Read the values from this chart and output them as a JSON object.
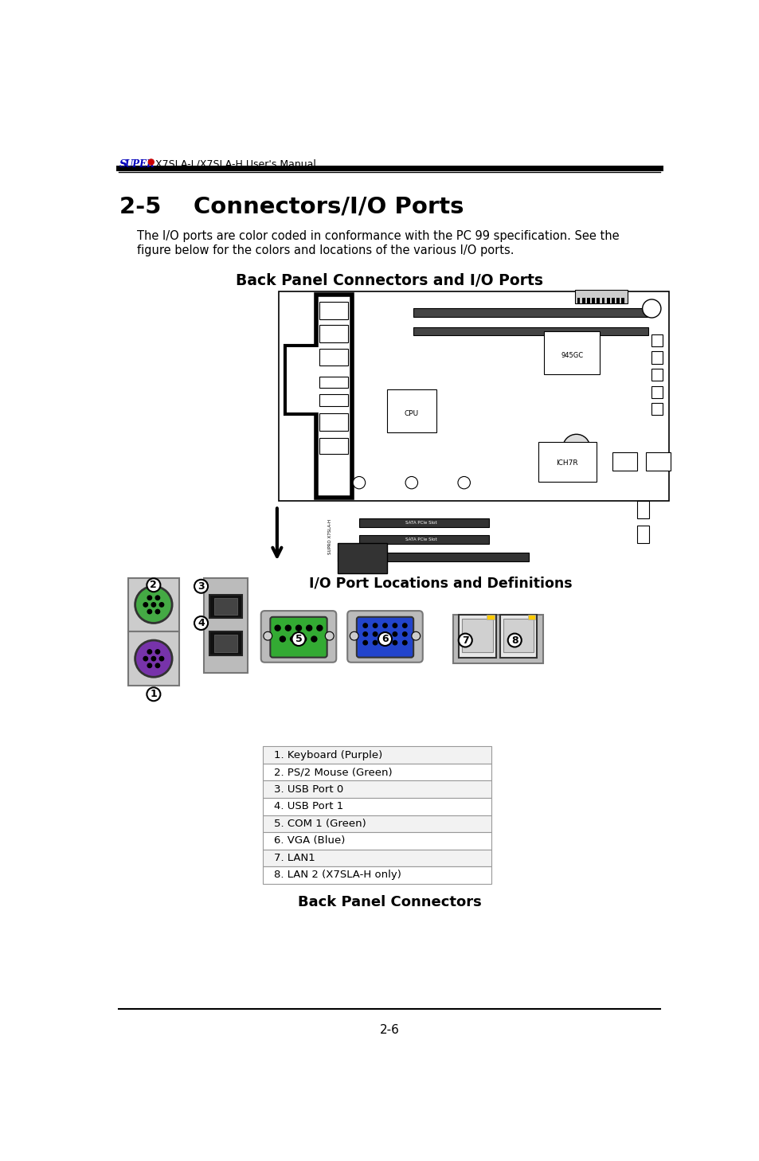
{
  "page_title_super": "SUPER",
  "page_title_rest": "X7SLA-L/X7SLA-H User's Manual",
  "section_title": "2-5    Connectors/I/O Ports",
  "body_text_line1": "The I/O ports are color coded in conformance with the PC 99 specification. See the",
  "body_text_line2": "figure below for the colors and locations of the various I/O ports.",
  "diagram_title": "Back Panel Connectors and I/O Ports",
  "io_label": "I/O Port Locations and Definitions",
  "table_title": "Back Panel Connectors",
  "table_rows": [
    "1. Keyboard (Purple)",
    "2. PS/2 Mouse (Green)",
    "3. USB Port 0",
    "4. USB Port 1",
    "5. COM 1 (Green)",
    "6. VGA (Blue)",
    "7. LAN1",
    "8. LAN 2 (X7SLA-H only)"
  ],
  "page_number": "2-6",
  "super_color": "#0000bb",
  "dot_color": "#cc0000",
  "bg_color": "#ffffff",
  "green_ps2": "#44aa44",
  "purple_ps2": "#7733aa",
  "green_com": "#33aa33",
  "blue_vga": "#2244cc",
  "gray_port": "#c0c0c0",
  "dark_gray": "#888888"
}
